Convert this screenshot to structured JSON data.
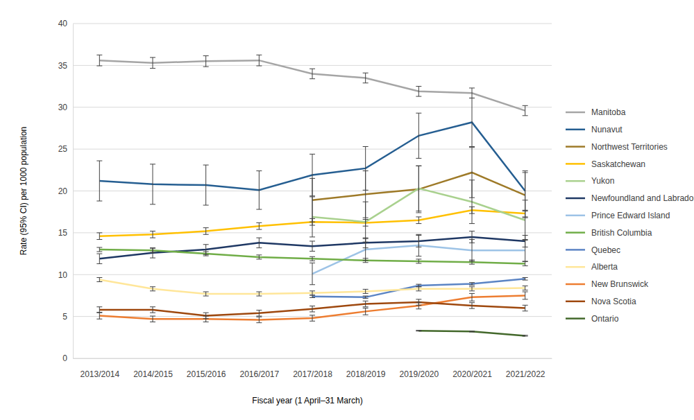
{
  "chart_data": {
    "type": "line",
    "x_label": "Fiscal year (1 April–31 March)",
    "y_label": "Rate (95% CI) per 1000 population",
    "categories": [
      "2013/2014",
      "2014/2015",
      "2015/2016",
      "2016/2017",
      "2017/2018",
      "2018/2019",
      "2019/2020",
      "2020/2021",
      "2021/2022"
    ],
    "ylim": [
      0,
      40
    ],
    "yticks": [
      0,
      5,
      10,
      15,
      20,
      25,
      30,
      35,
      40
    ],
    "grid": true,
    "legend": "right",
    "series": [
      {
        "name": "Manitoba",
        "color": "#a5a5a5",
        "values": [
          35.6,
          35.3,
          35.5,
          35.6,
          34.0,
          33.5,
          31.9,
          31.7,
          29.6
        ],
        "errors": [
          0.65,
          0.65,
          0.65,
          0.65,
          0.6,
          0.6,
          0.6,
          0.6,
          0.6
        ]
      },
      {
        "name": "Nunavut",
        "color": "#255e91",
        "values": [
          21.2,
          20.8,
          20.7,
          20.1,
          21.9,
          22.7,
          26.6,
          28.2,
          20.0
        ],
        "errors": [
          2.4,
          2.4,
          2.4,
          2.3,
          2.5,
          2.6,
          2.7,
          2.9,
          2.4
        ]
      },
      {
        "name": "Northwest Territories",
        "color": "#9e7a28",
        "values": [
          null,
          null,
          null,
          null,
          18.9,
          19.6,
          20.2,
          22.2,
          19.5
        ],
        "errors": [
          null,
          null,
          null,
          null,
          2.6,
          2.8,
          2.8,
          3.0,
          2.7
        ]
      },
      {
        "name": "Saskatchewan",
        "color": "#ffc000",
        "values": [
          14.6,
          14.8,
          15.2,
          15.8,
          16.3,
          16.2,
          16.5,
          17.7,
          17.3
        ],
        "errors": [
          0.4,
          0.4,
          0.4,
          0.4,
          0.4,
          0.4,
          0.4,
          0.4,
          0.4
        ]
      },
      {
        "name": "Yukon",
        "color": "#a9d18e",
        "values": [
          null,
          null,
          null,
          null,
          16.9,
          16.3,
          20.3,
          18.7,
          16.5
        ],
        "errors": [
          null,
          null,
          null,
          null,
          2.4,
          2.4,
          2.7,
          2.6,
          2.4
        ]
      },
      {
        "name": "Newfoundland and Labrador",
        "color": "#1f3864",
        "values": [
          11.9,
          12.6,
          13.0,
          13.8,
          13.4,
          13.8,
          14.0,
          14.5,
          14.0
        ],
        "errors": [
          0.6,
          0.6,
          0.6,
          0.6,
          0.6,
          0.6,
          0.7,
          0.7,
          0.7
        ]
      },
      {
        "name": "Prince Edward Island",
        "color": "#9dc3e6",
        "values": [
          null,
          null,
          null,
          null,
          10.1,
          13.0,
          13.5,
          12.9,
          12.9
        ],
        "errors": [
          null,
          null,
          null,
          null,
          1.3,
          1.3,
          1.3,
          1.3,
          1.3
        ]
      },
      {
        "name": "British Columbia",
        "color": "#70ad47",
        "values": [
          13.0,
          12.9,
          12.5,
          12.1,
          11.9,
          11.7,
          11.6,
          11.5,
          11.3
        ],
        "errors": [
          0.25,
          0.25,
          0.25,
          0.25,
          0.25,
          0.25,
          0.25,
          0.25,
          0.25
        ]
      },
      {
        "name": "Quebec",
        "color": "#5b84c4",
        "values": [
          null,
          null,
          null,
          null,
          7.4,
          7.3,
          8.7,
          8.9,
          9.5
        ],
        "errors": [
          null,
          null,
          null,
          null,
          0.15,
          0.15,
          0.15,
          0.15,
          0.15
        ]
      },
      {
        "name": "Alberta",
        "color": "#ffe699",
        "values": [
          9.4,
          8.3,
          7.7,
          7.7,
          7.8,
          8.0,
          8.3,
          8.3,
          8.4
        ],
        "errors": [
          0.25,
          0.25,
          0.25,
          0.25,
          0.25,
          0.25,
          0.25,
          0.25,
          0.25
        ]
      },
      {
        "name": "New Brunswick",
        "color": "#ed7d31",
        "values": [
          5.1,
          4.7,
          4.7,
          4.6,
          4.8,
          5.6,
          6.3,
          7.3,
          7.5
        ],
        "errors": [
          0.4,
          0.35,
          0.35,
          0.35,
          0.35,
          0.4,
          0.4,
          0.45,
          0.45
        ]
      },
      {
        "name": "Nova Scotia",
        "color": "#9e480e",
        "values": [
          5.8,
          5.8,
          5.1,
          5.4,
          5.9,
          6.5,
          6.7,
          6.3,
          6.0
        ],
        "errors": [
          0.35,
          0.35,
          0.35,
          0.35,
          0.35,
          0.35,
          0.35,
          0.35,
          0.35
        ]
      },
      {
        "name": "Ontario",
        "color": "#43682b",
        "values": [
          null,
          null,
          null,
          null,
          null,
          null,
          3.3,
          3.2,
          2.7
        ],
        "errors": [
          null,
          null,
          null,
          null,
          null,
          null,
          0.05,
          0.05,
          0.05
        ]
      }
    ]
  }
}
